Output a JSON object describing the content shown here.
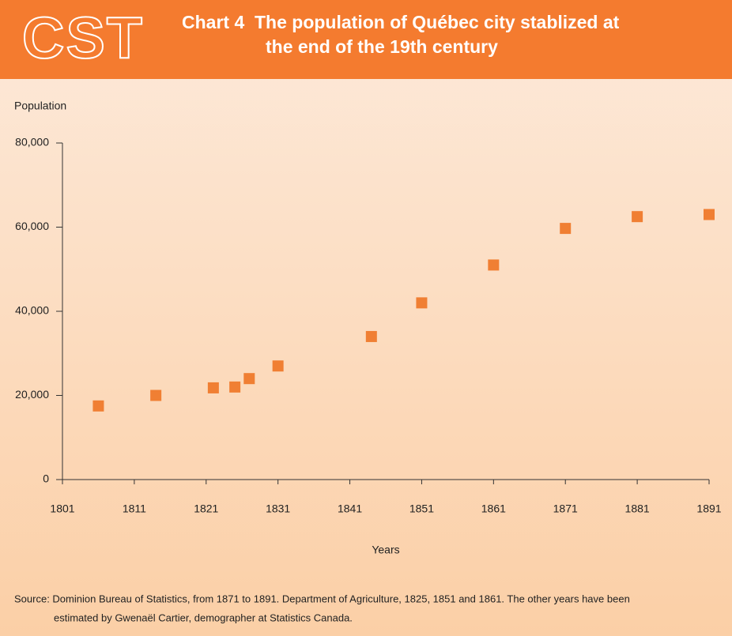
{
  "chart_data": {
    "type": "scatter",
    "logo": "CST",
    "chart_label": "Chart 4",
    "title": [
      "The population of Québec city stablized at",
      "the end of the 19th century"
    ],
    "y_label": "Population",
    "x_label": "Years",
    "x": [
      1806,
      1814,
      1822,
      1825,
      1827,
      1831,
      1844,
      1851,
      1861,
      1871,
      1881,
      1891
    ],
    "values": [
      17500,
      20000,
      21800,
      22000,
      24000,
      27000,
      34000,
      42000,
      51000,
      59700,
      62500,
      63000
    ],
    "color": "#f07f33",
    "xlim": [
      1801,
      1891
    ],
    "xticks": [
      1801,
      1811,
      1821,
      1831,
      1841,
      1851,
      1861,
      1871,
      1881,
      1891
    ],
    "ylim": [
      0,
      80000
    ],
    "yticks": [
      0,
      {
        "value": 20000,
        "label": "20,000"
      },
      {
        "value": 40000,
        "label": "40,000"
      },
      {
        "value": 60000,
        "label": "60,000"
      },
      {
        "value": 80000,
        "label": "80,000"
      }
    ],
    "grid": false,
    "source": [
      "Source: Dominion Bureau of Statistics, from 1871 to 1891. Department of Agriculture, 1825, 1851 and 1861. The other years have been",
      "estimated by Gwenaël Cartier, demographer at Statistics Canada."
    ]
  }
}
